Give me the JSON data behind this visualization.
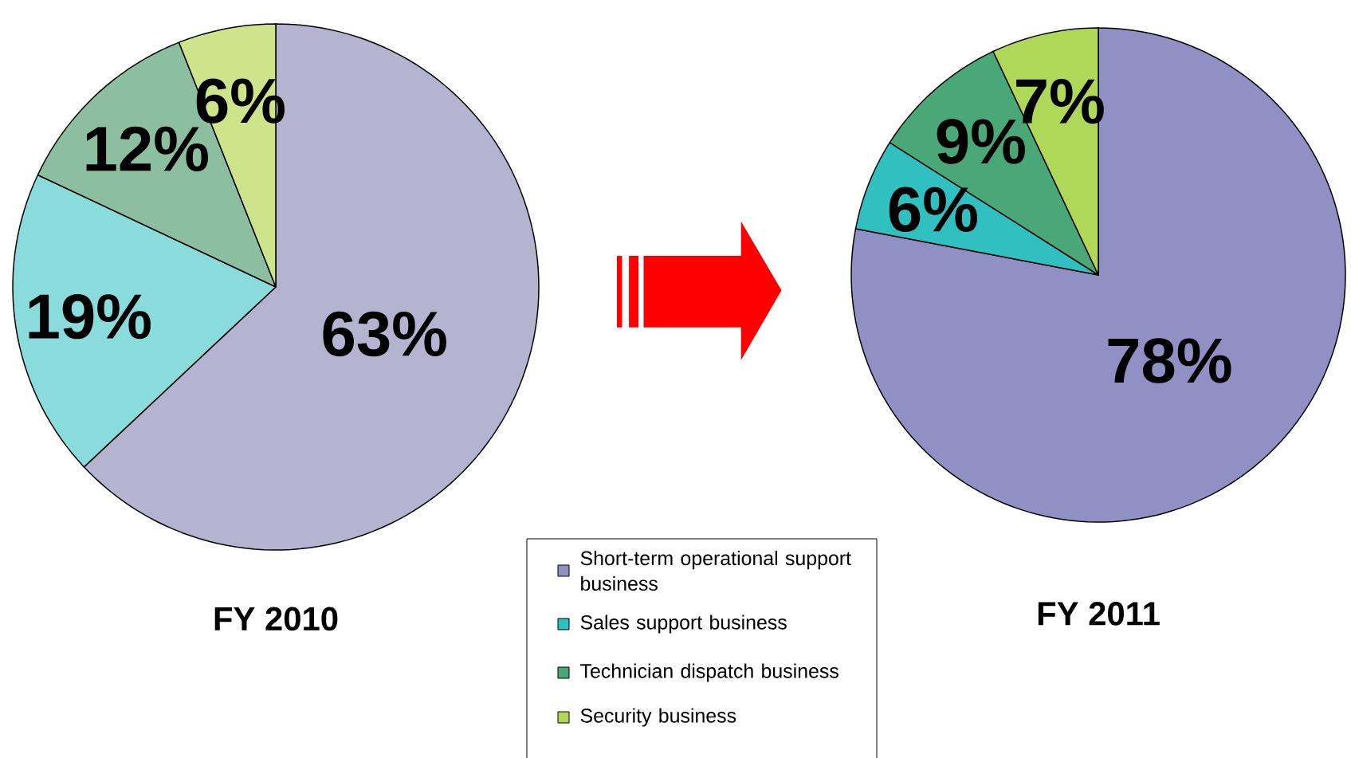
{
  "chart_data": [
    {
      "type": "pie",
      "title": "FY 2010",
      "categories": [
        null,
        null,
        null,
        null
      ],
      "values": [
        63,
        19,
        12,
        6
      ],
      "value_labels": [
        "63%",
        "19%",
        "12%",
        "6%"
      ],
      "colors": [
        "#b4b4d0",
        "#8adcdc",
        "#8cbf9f",
        "#cde48a"
      ]
    },
    {
      "type": "pie",
      "title": "FY 2011",
      "categories": [
        "Short-term operational support business",
        "Sales support business",
        "Technician dispatch business",
        "Security business"
      ],
      "values": [
        78,
        6,
        9,
        7
      ],
      "value_labels": [
        "78%",
        "6%",
        "9%",
        "7%"
      ],
      "colors": [
        "#9090c4",
        "#30c0c0",
        "#4aa878",
        "#b0d858"
      ],
      "legend": "bottom left"
    }
  ]
}
